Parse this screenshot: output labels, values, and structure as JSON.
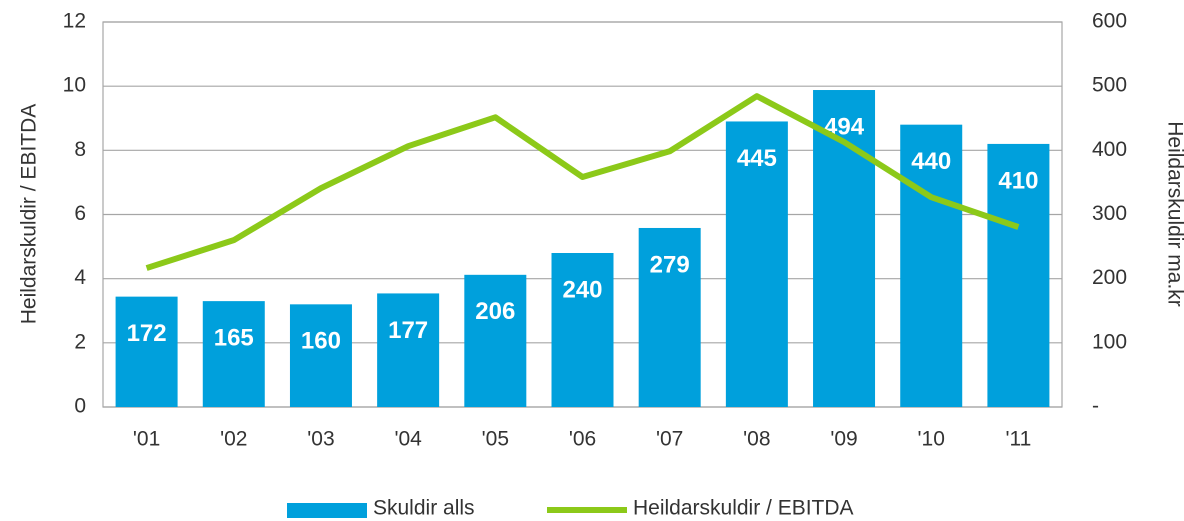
{
  "chart_data": {
    "type": "combo",
    "categories": [
      "'01",
      "'02",
      "'03",
      "'04",
      "'05",
      "'06",
      "'07",
      "'08",
      "'09",
      "'10",
      "'11"
    ],
    "series": [
      {
        "name": "Skuldir alls",
        "type": "bar",
        "axis": "y2",
        "color": "#00a0dc",
        "values": [
          172,
          165,
          160,
          177,
          206,
          240,
          279,
          445,
          494,
          440,
          410
        ]
      },
      {
        "name": "Heildarskuldir / EBITDA",
        "type": "line",
        "axis": "y",
        "color": "#8cc919",
        "values": [
          4.33,
          5.2,
          6.82,
          8.13,
          9.03,
          7.17,
          7.97,
          9.69,
          8.26,
          6.54,
          5.61
        ]
      }
    ],
    "ylabel": "Heildarskuldir / EBITDA",
    "y2label": "Heildarskuldir ma.kr",
    "ylim": [
      0,
      12
    ],
    "yticks": [
      0,
      2,
      4,
      6,
      8,
      10,
      12
    ],
    "y2lim": [
      0,
      600
    ],
    "y2ticks": [
      {
        "value": 0,
        "label": "-"
      },
      100,
      200,
      300,
      400,
      500,
      600
    ],
    "grid": true,
    "legend": "bottom"
  }
}
